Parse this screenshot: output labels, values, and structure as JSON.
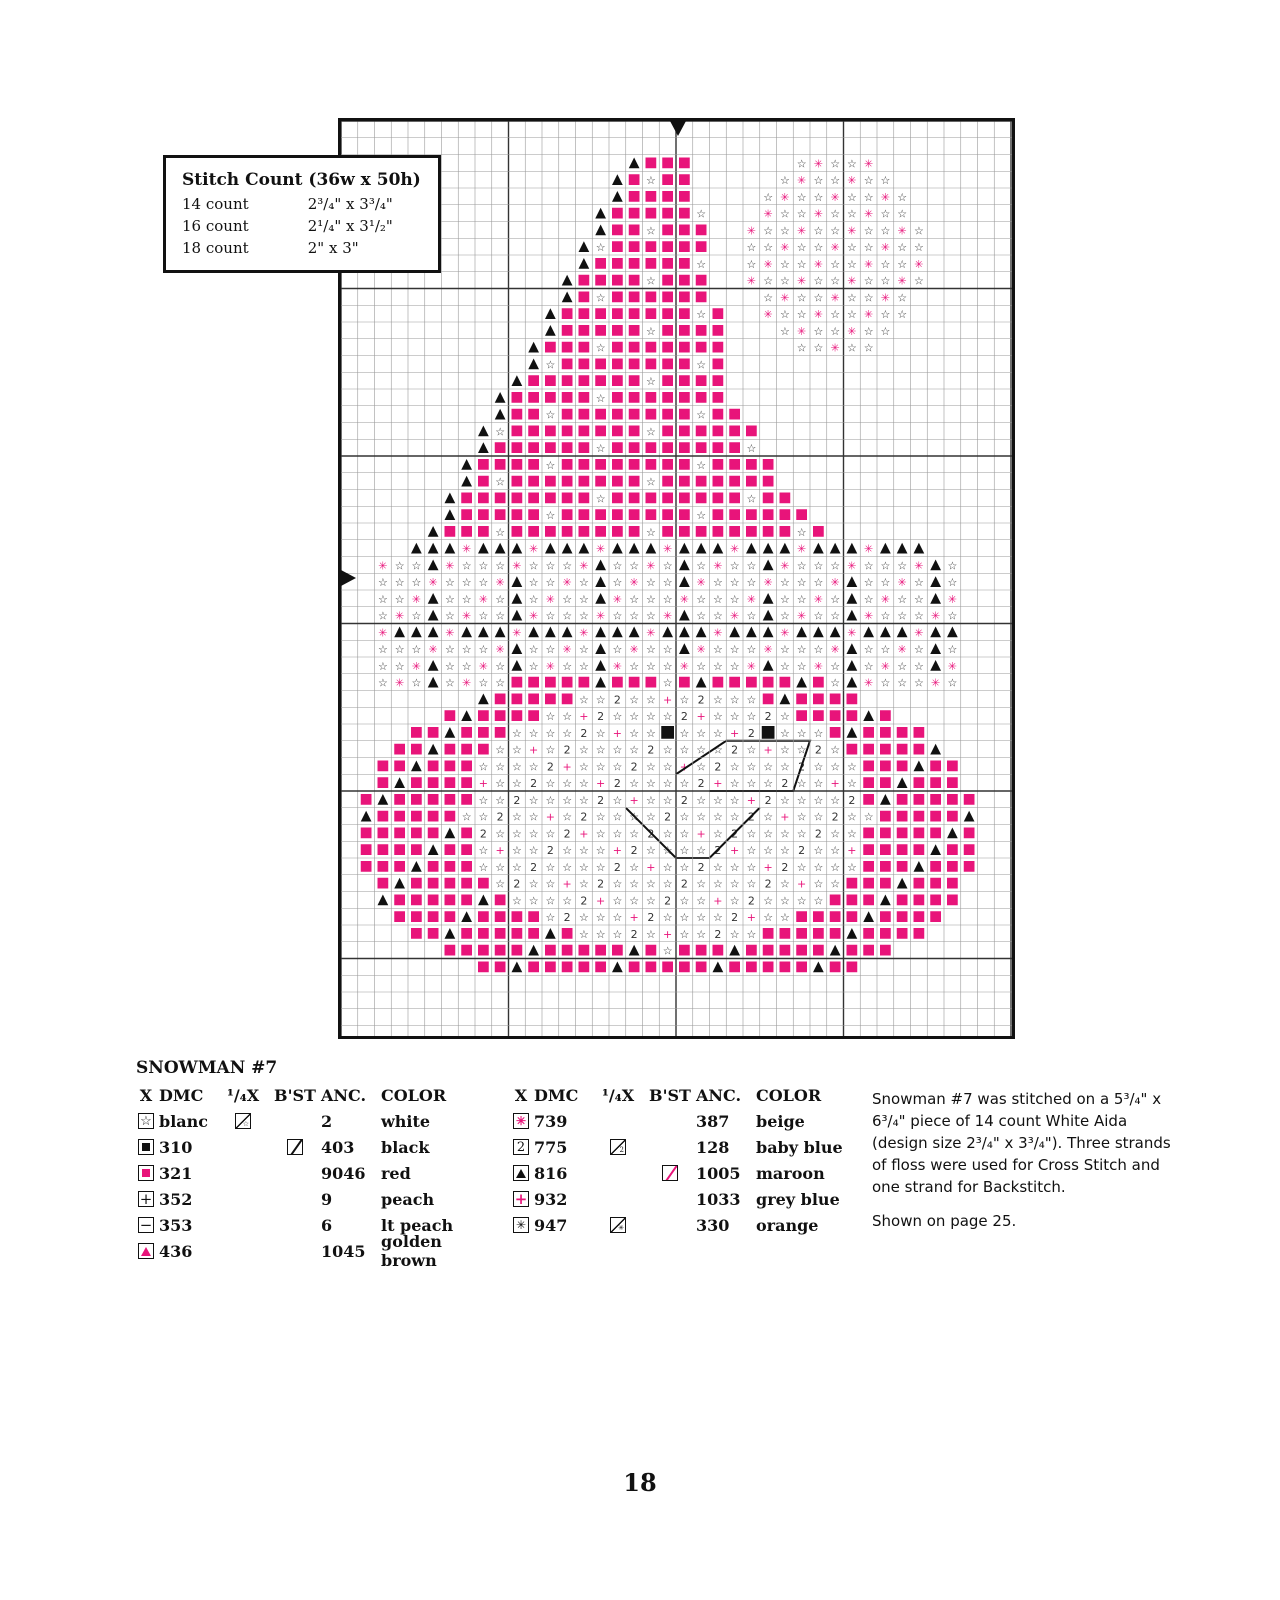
{
  "stitch_count": {
    "title": "Stitch Count (36w x 50h)",
    "rows": [
      {
        "label": "14 count",
        "width": "2³/₄\"",
        "x": "x",
        "height": "3³/₄\""
      },
      {
        "label": "16 count",
        "width": "2¹/₄\"",
        "x": "x",
        "height": "3¹/₂\""
      },
      {
        "label": "18 count",
        "width": "2\"",
        "x": "x",
        "height": "3\""
      }
    ]
  },
  "key": {
    "title": "SNOWMAN #7",
    "headers": {
      "x": "X",
      "dmc": "DMC",
      "quarter": "¹/₄X",
      "bst": "B'ST",
      "anc": "ANC.",
      "color": "COLOR"
    },
    "left": [
      {
        "symbol": "star",
        "dmc": "blanc",
        "quarter": true,
        "bst": "",
        "anc": "2",
        "color": "white"
      },
      {
        "symbol": "square-black",
        "dmc": "310",
        "quarter": false,
        "bst": "black",
        "anc": "403",
        "color": "black"
      },
      {
        "symbol": "square-red",
        "dmc": "321",
        "quarter": false,
        "bst": "",
        "anc": "9046",
        "color": "red"
      },
      {
        "symbol": "plus",
        "dmc": "352",
        "quarter": false,
        "bst": "",
        "anc": "9",
        "color": "peach"
      },
      {
        "symbol": "minus",
        "dmc": "353",
        "quarter": false,
        "bst": "",
        "anc": "6",
        "color": "lt peach"
      },
      {
        "symbol": "triangle-red",
        "dmc": "436",
        "quarter": false,
        "bst": "",
        "anc": "1045",
        "color": "golden brown"
      }
    ],
    "right": [
      {
        "symbol": "asterisk-pink",
        "dmc": "739",
        "quarter": false,
        "bst": "",
        "anc": "387",
        "color": "beige"
      },
      {
        "symbol": "two",
        "dmc": "775",
        "quarter": true,
        "bst": "",
        "anc": "128",
        "color": "baby blue"
      },
      {
        "symbol": "triangle-black",
        "dmc": "816",
        "quarter": false,
        "bst": "maroon",
        "anc": "1005",
        "color": "maroon"
      },
      {
        "symbol": "plus-pink",
        "dmc": "932",
        "quarter": false,
        "bst": "",
        "anc": "1033",
        "color": "grey blue"
      },
      {
        "symbol": "asterisk-black",
        "dmc": "947",
        "quarter": true,
        "bst": "",
        "anc": "330",
        "color": "orange"
      }
    ]
  },
  "notes": {
    "text": "Snowman #7 was stitched on a 5³/₄\" x 6³/₄\" piece of 14 count White Aida (design size 2³/₄\" x 3³/₄\"). Three strands of floss were used for Cross Stitch and one strand for Backstitch.",
    "shown": "Shown on page 25."
  },
  "page_number": "18",
  "colors": {
    "pink": "#e8147a",
    "black": "#111111",
    "grid": "#9a9a9a",
    "grid_major": "#333333"
  }
}
